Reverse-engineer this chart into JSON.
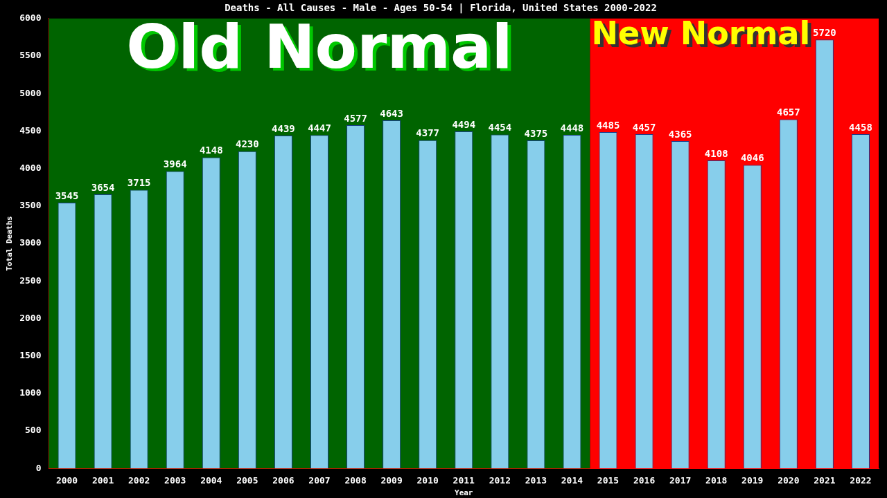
{
  "chart_data": {
    "type": "bar",
    "title": "Deaths - All Causes - Male - Ages 50-54 | Florida, United States 2000-2022",
    "xlabel": "Year",
    "ylabel": "Total Deaths",
    "categories": [
      "2000",
      "2001",
      "2002",
      "2003",
      "2004",
      "2005",
      "2006",
      "2007",
      "2008",
      "2009",
      "2010",
      "2011",
      "2012",
      "2013",
      "2014",
      "2015",
      "2016",
      "2017",
      "2018",
      "2019",
      "2020",
      "2021",
      "2022"
    ],
    "values": [
      3545,
      3654,
      3715,
      3964,
      4148,
      4230,
      4439,
      4447,
      4577,
      4643,
      4377,
      4494,
      4454,
      4375,
      4448,
      4485,
      4457,
      4365,
      4108,
      4046,
      4657,
      5720,
      4458
    ],
    "color": "#87ceeb",
    "data_labels": true,
    "grid": false,
    "legend": false,
    "ylim": [
      0,
      6000
    ],
    "yticks": [
      0,
      500,
      1000,
      1500,
      2000,
      2500,
      3000,
      3500,
      4000,
      4500,
      5000,
      5500,
      6000
    ],
    "bands": [
      {
        "axis": "x",
        "from": "2000",
        "to": "2014",
        "label": "Old Normal",
        "color": "#006400"
      },
      {
        "axis": "x",
        "from": "2015",
        "to": "2022",
        "label": "New Normal",
        "color": "#ff0000"
      }
    ]
  }
}
